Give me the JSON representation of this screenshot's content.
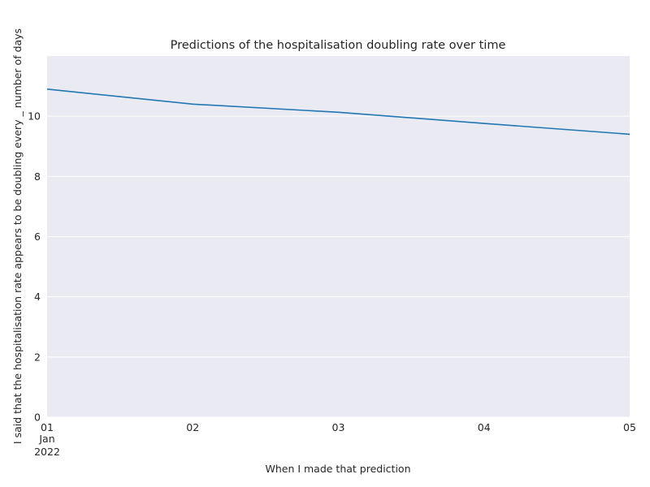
{
  "chart_data": {
    "type": "line",
    "title": "Predictions of the hospitalisation doubling rate over time",
    "xlabel": "When I made that prediction",
    "ylabel": "I said that the hospitalisation rate appears to be doubling every _ number of days",
    "x": [
      "2022-01-01",
      "2022-01-02",
      "2022-01-03",
      "2022-01-04",
      "2022-01-05"
    ],
    "x_ticks": [
      {
        "x": "2022-01-01",
        "label": "01",
        "sublabel": "Jan",
        "year": "2022"
      },
      {
        "x": "2022-01-02",
        "label": "02"
      },
      {
        "x": "2022-01-03",
        "label": "03"
      },
      {
        "x": "2022-01-04",
        "label": "04"
      },
      {
        "x": "2022-01-05",
        "label": "05"
      }
    ],
    "series": [
      {
        "values": [
          10.9,
          10.4,
          10.13,
          9.76,
          9.4
        ],
        "color": "#1f77b4"
      }
    ],
    "xlim": [
      "2022-01-01",
      "2022-01-05"
    ],
    "ylim": [
      0,
      12
    ],
    "yticks": [
      0,
      2,
      4,
      6,
      8,
      10
    ],
    "grid": true,
    "legend": "none",
    "colors": {
      "background": "#eaeaf2",
      "grid": "#ffffff",
      "line": "#1f77b4"
    }
  }
}
